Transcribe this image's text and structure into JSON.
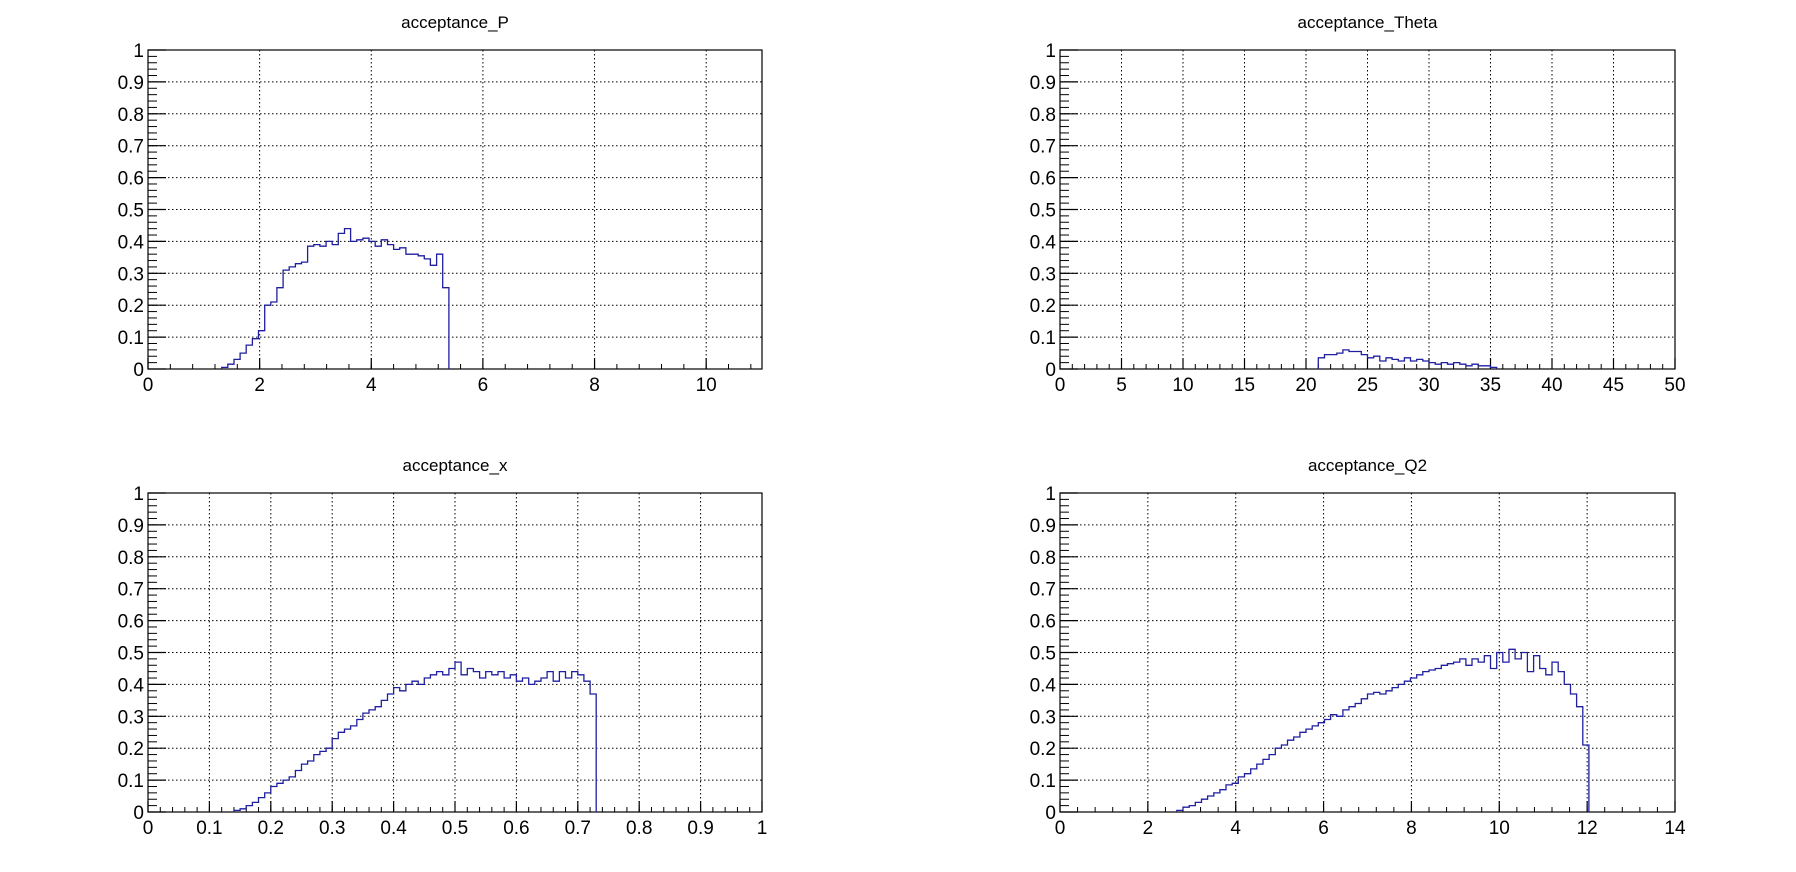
{
  "colors": {
    "line": "#1f1fa0",
    "axis": "#000000",
    "grid": "#000000",
    "background": "#ffffff"
  },
  "chart_data": [
    {
      "type": "histogram",
      "title": "acceptance_P",
      "xlim": [
        0,
        11
      ],
      "ylim": [
        0,
        1
      ],
      "grid": true,
      "xticks": [
        0,
        2,
        4,
        6,
        8,
        10
      ],
      "yticks": [
        0,
        0.1,
        0.2,
        0.3,
        0.4,
        0.5,
        0.6,
        0.7,
        0.8,
        0.9,
        1
      ],
      "bin_width": 0.11,
      "x_start": 1.32,
      "values": [
        0.005,
        0.015,
        0.03,
        0.05,
        0.075,
        0.095,
        0.12,
        0.2,
        0.21,
        0.255,
        0.31,
        0.32,
        0.33,
        0.335,
        0.385,
        0.39,
        0.385,
        0.4,
        0.39,
        0.425,
        0.44,
        0.4,
        0.405,
        0.41,
        0.4,
        0.385,
        0.405,
        0.39,
        0.375,
        0.38,
        0.36,
        0.36,
        0.355,
        0.345,
        0.325,
        0.36,
        0.255
      ]
    },
    {
      "type": "histogram",
      "title": "acceptance_Theta",
      "xlim": [
        0,
        50
      ],
      "ylim": [
        0,
        1
      ],
      "grid": true,
      "xticks": [
        0,
        5,
        10,
        15,
        20,
        25,
        30,
        35,
        40,
        45,
        50
      ],
      "yticks": [
        0,
        0.1,
        0.2,
        0.3,
        0.4,
        0.5,
        0.6,
        0.7,
        0.8,
        0.9,
        1
      ],
      "bin_width": 0.5,
      "x_start": 21,
      "values": [
        0.035,
        0.045,
        0.045,
        0.05,
        0.06,
        0.055,
        0.055,
        0.045,
        0.035,
        0.04,
        0.025,
        0.035,
        0.03,
        0.025,
        0.035,
        0.025,
        0.03,
        0.025,
        0.02,
        0.015,
        0.02,
        0.015,
        0.02,
        0.015,
        0.01,
        0.015,
        0.01,
        0.01,
        0.005
      ]
    },
    {
      "type": "histogram",
      "title": "acceptance_x",
      "xlim": [
        0,
        1
      ],
      "ylim": [
        0,
        1
      ],
      "grid": true,
      "xticks": [
        0,
        0.1,
        0.2,
        0.3,
        0.4,
        0.5,
        0.6,
        0.7,
        0.8,
        0.9,
        1
      ],
      "yticks": [
        0,
        0.1,
        0.2,
        0.3,
        0.4,
        0.5,
        0.6,
        0.7,
        0.8,
        0.9,
        1
      ],
      "bin_width": 0.01,
      "x_start": 0.14,
      "values": [
        0.005,
        0.01,
        0.02,
        0.03,
        0.045,
        0.06,
        0.08,
        0.09,
        0.1,
        0.11,
        0.13,
        0.15,
        0.16,
        0.18,
        0.19,
        0.2,
        0.23,
        0.25,
        0.26,
        0.27,
        0.29,
        0.31,
        0.32,
        0.33,
        0.35,
        0.37,
        0.39,
        0.38,
        0.4,
        0.41,
        0.4,
        0.42,
        0.43,
        0.44,
        0.43,
        0.45,
        0.47,
        0.43,
        0.45,
        0.44,
        0.42,
        0.44,
        0.43,
        0.44,
        0.42,
        0.43,
        0.41,
        0.42,
        0.4,
        0.41,
        0.42,
        0.44,
        0.41,
        0.44,
        0.42,
        0.44,
        0.43,
        0.41,
        0.37
      ]
    },
    {
      "type": "histogram",
      "title": "acceptance_Q2",
      "xlim": [
        0,
        14
      ],
      "ylim": [
        0,
        1
      ],
      "grid": true,
      "xticks": [
        0,
        2,
        4,
        6,
        8,
        10,
        12,
        14
      ],
      "yticks": [
        0,
        0.1,
        0.2,
        0.3,
        0.4,
        0.5,
        0.6,
        0.7,
        0.8,
        0.9,
        1
      ],
      "bin_width": 0.14,
      "x_start": 2.66,
      "values": [
        0.005,
        0.015,
        0.02,
        0.03,
        0.04,
        0.05,
        0.06,
        0.07,
        0.085,
        0.09,
        0.11,
        0.12,
        0.135,
        0.15,
        0.165,
        0.18,
        0.2,
        0.21,
        0.225,
        0.235,
        0.25,
        0.26,
        0.27,
        0.28,
        0.29,
        0.305,
        0.3,
        0.32,
        0.33,
        0.34,
        0.355,
        0.37,
        0.375,
        0.37,
        0.38,
        0.39,
        0.4,
        0.41,
        0.42,
        0.43,
        0.44,
        0.445,
        0.45,
        0.46,
        0.465,
        0.47,
        0.48,
        0.46,
        0.48,
        0.47,
        0.49,
        0.45,
        0.5,
        0.47,
        0.51,
        0.48,
        0.5,
        0.44,
        0.49,
        0.45,
        0.43,
        0.47,
        0.44,
        0.4,
        0.37,
        0.33,
        0.21
      ]
    }
  ]
}
